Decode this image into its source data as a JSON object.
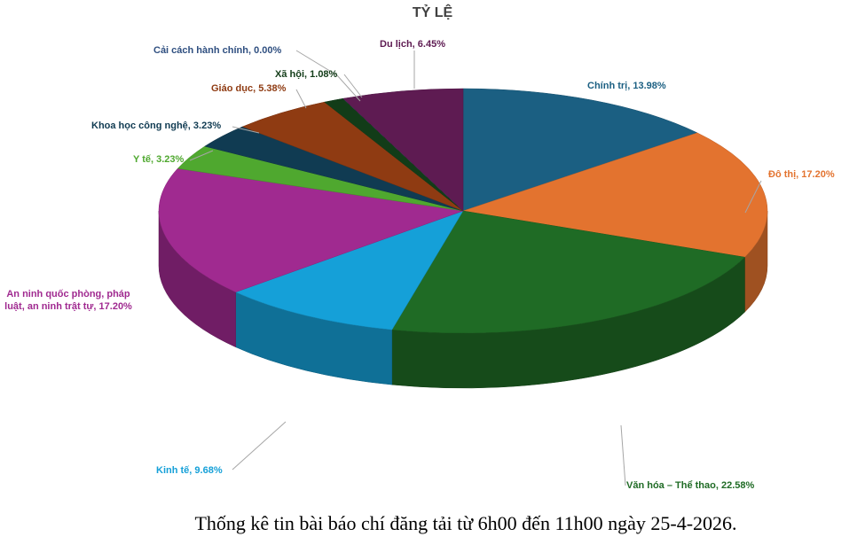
{
  "chart_data": {
    "type": "pie3d",
    "title": "TỶ LỆ",
    "caption": "Thống kê tin bài báo chí đăng tải từ 6h00 đến 11h00 ngày 25-4-2026.",
    "categories": [
      "Chính trị",
      "Đô thị",
      "Văn hóa – Thể thao",
      "Kinh tế",
      "An ninh quốc phòng, pháp luật, an ninh trật tự",
      "Y tế",
      "Khoa học công nghệ",
      "Giáo dục",
      "Xã hội",
      "Cải cách hành chính",
      "Du lịch"
    ],
    "values": [
      13.98,
      17.2,
      22.58,
      9.68,
      17.2,
      3.23,
      3.23,
      5.38,
      1.08,
      0.0,
      6.45
    ],
    "value_labels": [
      "13.98%",
      "17.20%",
      "22.58%",
      "9.68%",
      "17.20%",
      "3.23%",
      "3.23%",
      "5.38%",
      "1.08%",
      "0.00%",
      "6.45%"
    ],
    "colors": [
      "#1b5f82",
      "#e3732f",
      "#1f6b25",
      "#15a0d8",
      "#a02a90",
      "#4fa82f",
      "#103b52",
      "#8f3b12",
      "#123c18",
      "#4f7fc0",
      "#5e1b52"
    ]
  }
}
